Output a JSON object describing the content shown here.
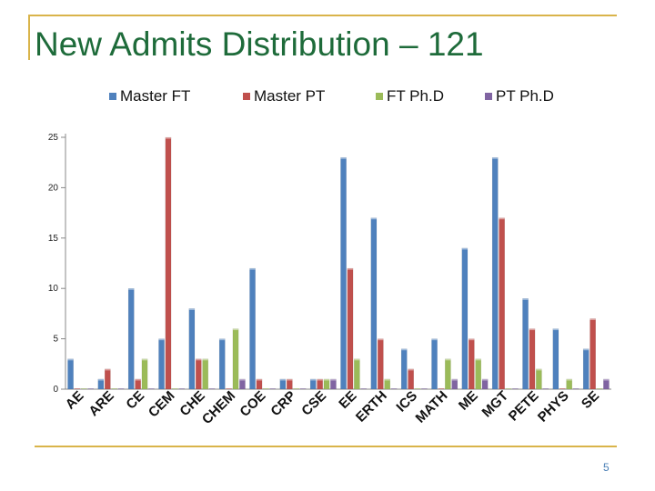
{
  "slide": {
    "title": "New Admits Distribution – 121",
    "page_number": "5"
  },
  "colors": {
    "frame": "#d9b44a",
    "title": "#1e6b3a"
  },
  "chart_data": {
    "type": "bar",
    "categories": [
      "AE",
      "ARE",
      "CE",
      "CEM",
      "CHE",
      "CHEM",
      "COE",
      "CRP",
      "CSE",
      "EE",
      "ERTH",
      "ICS",
      "MATH",
      "ME",
      "MGT",
      "PETE",
      "PHYS",
      "SE"
    ],
    "ylim": [
      0,
      25
    ],
    "yticks": [
      0,
      5,
      10,
      15,
      20,
      25
    ],
    "grid": false,
    "legend_position": "top",
    "series": [
      {
        "name": "Master FT",
        "color": "#4f81bd",
        "values": [
          3,
          1,
          10,
          5,
          8,
          5,
          12,
          1,
          1,
          23,
          17,
          4,
          5,
          14,
          23,
          9,
          6,
          4
        ]
      },
      {
        "name": "Master PT",
        "color": "#c0504d",
        "values": [
          0,
          2,
          1,
          25,
          3,
          0,
          1,
          1,
          1,
          12,
          5,
          2,
          0,
          5,
          17,
          6,
          0,
          7
        ]
      },
      {
        "name": "FT Ph.D",
        "color": "#9bbb59",
        "values": [
          0,
          0,
          3,
          0,
          3,
          6,
          0,
          0,
          1,
          3,
          1,
          0,
          3,
          3,
          0,
          2,
          1,
          0
        ]
      },
      {
        "name": "PT Ph.D",
        "color": "#8064a2",
        "values": [
          0,
          0,
          0,
          0,
          0,
          1,
          0,
          0,
          1,
          0,
          0,
          0,
          1,
          1,
          0,
          0,
          0,
          1
        ]
      }
    ]
  }
}
